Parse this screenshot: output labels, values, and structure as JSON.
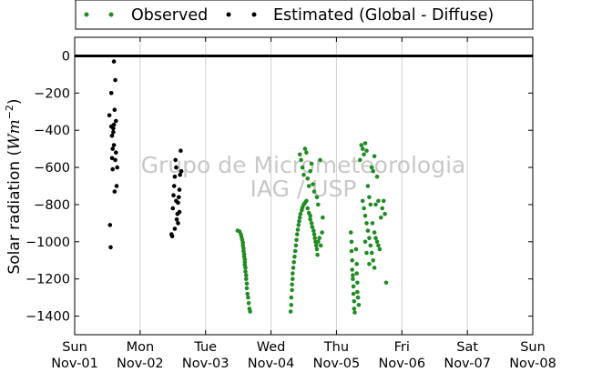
{
  "chart_data": {
    "type": "scatter",
    "title": "",
    "ylabel": "Solar radiation (Wm^-2)",
    "ylabel_parts": {
      "text": "Solar radiation (",
      "unit_main": "Wm",
      "unit_exp": "−2",
      "close": ")"
    },
    "xlabel": "",
    "xlim": [
      0,
      7
    ],
    "ylim": [
      -1500,
      100
    ],
    "yticks": [
      0,
      -200,
      -400,
      -600,
      -800,
      -1000,
      -1200,
      -1400
    ],
    "xtick_labels": [
      [
        "Sun",
        "Nov-01"
      ],
      [
        "Mon",
        "Nov-02"
      ],
      [
        "Tue",
        "Nov-03"
      ],
      [
        "Wed",
        "Nov-04"
      ],
      [
        "Thu",
        "Nov-05"
      ],
      [
        "Fri",
        "Nov-06"
      ],
      [
        "Sat",
        "Nov-07"
      ],
      [
        "Sun",
        "Nov-08"
      ]
    ],
    "grid": "vertical",
    "zero_line": 0,
    "legend_position": "top-center",
    "watermark": [
      "Grupo de Micrometeorologia",
      "IAG / USP"
    ],
    "colors": {
      "observed": "#228b22",
      "estimated": "#000000"
    },
    "series": [
      {
        "name": "Observed",
        "color": "#228b22",
        "points": [
          [
            2.49,
            -940
          ],
          [
            2.52,
            -945
          ],
          [
            2.54,
            -960
          ],
          [
            2.55,
            -975
          ],
          [
            2.56,
            -990
          ],
          [
            2.57,
            -1005
          ],
          [
            2.57,
            -1020
          ],
          [
            2.58,
            -1035
          ],
          [
            2.58,
            -1050
          ],
          [
            2.59,
            -1065
          ],
          [
            2.59,
            -1080
          ],
          [
            2.6,
            -1095
          ],
          [
            2.6,
            -1110
          ],
          [
            2.6,
            -1125
          ],
          [
            2.61,
            -1140
          ],
          [
            2.61,
            -1160
          ],
          [
            2.62,
            -1180
          ],
          [
            2.62,
            -1200
          ],
          [
            2.63,
            -1225
          ],
          [
            2.63,
            -1250
          ],
          [
            2.64,
            -1280
          ],
          [
            2.65,
            -1300
          ],
          [
            2.66,
            -1330
          ],
          [
            2.67,
            -1360
          ],
          [
            2.68,
            -1375
          ],
          [
            3.3,
            -1375
          ],
          [
            3.31,
            -1340
          ],
          [
            3.31,
            -1300
          ],
          [
            3.32,
            -1260
          ],
          [
            3.32,
            -1230
          ],
          [
            3.33,
            -1200
          ],
          [
            3.33,
            -1170
          ],
          [
            3.34,
            -1140
          ],
          [
            3.35,
            -1110
          ],
          [
            3.36,
            -1080
          ],
          [
            3.37,
            -1050
          ],
          [
            3.38,
            -1020
          ],
          [
            3.39,
            -990
          ],
          [
            3.4,
            -960
          ],
          [
            3.41,
            -935
          ],
          [
            3.42,
            -910
          ],
          [
            3.43,
            -890
          ],
          [
            3.44,
            -870
          ],
          [
            3.45,
            -850
          ],
          [
            3.47,
            -830
          ],
          [
            3.48,
            -815
          ],
          [
            3.5,
            -800
          ],
          [
            3.52,
            -790
          ],
          [
            3.54,
            -780
          ],
          [
            3.56,
            -820
          ],
          [
            3.58,
            -845
          ],
          [
            3.6,
            -860
          ],
          [
            3.44,
            -530
          ],
          [
            3.46,
            -560
          ],
          [
            3.48,
            -600
          ],
          [
            3.5,
            -640
          ],
          [
            3.52,
            -500
          ],
          [
            3.54,
            -520
          ],
          [
            3.56,
            -660
          ],
          [
            3.58,
            -700
          ],
          [
            3.6,
            -620
          ],
          [
            3.62,
            -580
          ],
          [
            3.64,
            -690
          ],
          [
            3.66,
            -730
          ],
          [
            3.7,
            -760
          ],
          [
            3.72,
            -800
          ],
          [
            3.75,
            -560
          ],
          [
            3.6,
            -880
          ],
          [
            3.62,
            -900
          ],
          [
            3.63,
            -920
          ],
          [
            3.65,
            -940
          ],
          [
            3.66,
            -960
          ],
          [
            3.67,
            -980
          ],
          [
            3.68,
            -1000
          ],
          [
            3.69,
            -1020
          ],
          [
            3.7,
            -1040
          ],
          [
            3.71,
            -1070
          ],
          [
            3.72,
            -1000
          ],
          [
            3.74,
            -980
          ],
          [
            3.76,
            -1020
          ],
          [
            3.78,
            -950
          ],
          [
            3.79,
            -870
          ],
          [
            4.22,
            -950
          ],
          [
            4.23,
            -1000
          ],
          [
            4.23,
            -1050
          ],
          [
            4.24,
            -1100
          ],
          [
            4.24,
            -1150
          ],
          [
            4.25,
            -1180
          ],
          [
            4.25,
            -1200
          ],
          [
            4.26,
            -1240
          ],
          [
            4.26,
            -1280
          ],
          [
            4.27,
            -1320
          ],
          [
            4.27,
            -1360
          ],
          [
            4.28,
            -1380
          ],
          [
            4.3,
            -1040
          ],
          [
            4.31,
            -1120
          ],
          [
            4.31,
            -1170
          ],
          [
            4.32,
            -1220
          ],
          [
            4.32,
            -1270
          ],
          [
            4.33,
            -1300
          ],
          [
            4.34,
            -1340
          ],
          [
            4.36,
            -560
          ],
          [
            4.38,
            -480
          ],
          [
            4.4,
            -500
          ],
          [
            4.42,
            -530
          ],
          [
            4.44,
            -470
          ],
          [
            4.46,
            -510
          ],
          [
            4.48,
            -700
          ],
          [
            4.5,
            -760
          ],
          [
            4.52,
            -800
          ],
          [
            4.54,
            -600
          ],
          [
            4.56,
            -620
          ],
          [
            4.58,
            -540
          ],
          [
            4.6,
            -800
          ],
          [
            4.62,
            -650
          ],
          [
            4.64,
            -780
          ],
          [
            4.4,
            -780
          ],
          [
            4.42,
            -820
          ],
          [
            4.44,
            -860
          ],
          [
            4.46,
            -900
          ],
          [
            4.48,
            -940
          ],
          [
            4.5,
            -980
          ],
          [
            4.52,
            -1020
          ],
          [
            4.54,
            -1060
          ],
          [
            4.56,
            -1100
          ],
          [
            4.58,
            -1140
          ],
          [
            4.44,
            -1000
          ],
          [
            4.46,
            -1060
          ],
          [
            4.5,
            -1120
          ],
          [
            4.55,
            -900
          ],
          [
            4.58,
            -950
          ],
          [
            4.6,
            -980
          ],
          [
            4.62,
            -1000
          ],
          [
            4.64,
            -1020
          ],
          [
            4.66,
            -1040
          ],
          [
            4.68,
            -870
          ],
          [
            4.7,
            -820
          ],
          [
            4.72,
            -780
          ],
          [
            4.74,
            -850
          ],
          [
            4.76,
            -1220
          ]
        ]
      },
      {
        "name": "Estimated (Global - Diffuse)",
        "color": "#000000",
        "points": [
          [
            0.53,
            -320
          ],
          [
            0.54,
            -910
          ],
          [
            0.55,
            -1030
          ],
          [
            0.56,
            -200
          ],
          [
            0.57,
            -550
          ],
          [
            0.58,
            -500
          ],
          [
            0.59,
            -410
          ],
          [
            0.6,
            -370
          ],
          [
            0.61,
            -290
          ],
          [
            0.62,
            -130
          ],
          [
            0.6,
            -30
          ],
          [
            0.63,
            -350
          ],
          [
            0.64,
            -700
          ],
          [
            0.65,
            -600
          ],
          [
            0.57,
            -430
          ],
          [
            0.58,
            -610
          ],
          [
            0.61,
            -730
          ],
          [
            0.63,
            -520
          ],
          [
            0.62,
            -560
          ],
          [
            0.59,
            -390
          ],
          [
            0.6,
            -480
          ],
          [
            0.56,
            -380
          ],
          [
            1.48,
            -960
          ],
          [
            1.49,
            -970
          ],
          [
            1.5,
            -820
          ],
          [
            1.51,
            -750
          ],
          [
            1.52,
            -700
          ],
          [
            1.53,
            -650
          ],
          [
            1.54,
            -560
          ],
          [
            1.55,
            -600
          ],
          [
            1.56,
            -880
          ],
          [
            1.57,
            -850
          ],
          [
            1.58,
            -790
          ],
          [
            1.59,
            -760
          ],
          [
            1.6,
            -720
          ],
          [
            1.61,
            -640
          ],
          [
            1.62,
            -510
          ],
          [
            1.63,
            -620
          ],
          [
            1.6,
            -840
          ],
          [
            1.58,
            -900
          ],
          [
            1.55,
            -780
          ],
          [
            1.53,
            -930
          ]
        ]
      }
    ]
  }
}
